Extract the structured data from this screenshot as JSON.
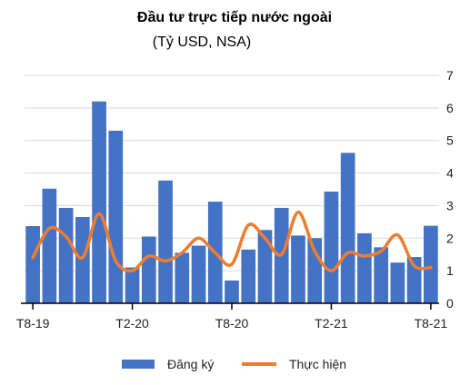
{
  "chart_data": {
    "type": "bar+line",
    "title": "Đầu tư trực tiếp nước ngoài",
    "subtitle": "(Tỷ USD, NSA)",
    "x_tick_labels": [
      "T8-19",
      "T2-20",
      "T8-20",
      "T2-21",
      "T8-21"
    ],
    "x_tick_indices": [
      0,
      6,
      12,
      18,
      24
    ],
    "y_axis_side": "right",
    "ylim": [
      0,
      7
    ],
    "yticks": [
      0,
      1,
      2,
      3,
      4,
      5,
      6,
      7
    ],
    "grid": "horizontal",
    "legend_position": "bottom",
    "series": [
      {
        "name": "Đăng ký",
        "type": "bar",
        "color": "#4472C4",
        "values": [
          2.37,
          3.52,
          2.93,
          2.65,
          6.2,
          5.3,
          1.1,
          2.05,
          3.77,
          1.55,
          1.77,
          3.12,
          0.7,
          1.65,
          2.25,
          2.93,
          2.08,
          2.0,
          3.43,
          4.62,
          2.15,
          1.72,
          1.25,
          1.42,
          2.38
        ]
      },
      {
        "name": "Thực hiện",
        "type": "line",
        "color": "#ED7D31",
        "values": [
          1.4,
          2.3,
          2.05,
          1.4,
          2.75,
          1.3,
          1.0,
          1.45,
          1.3,
          1.55,
          2.0,
          1.55,
          1.2,
          2.4,
          2.0,
          1.5,
          2.8,
          1.6,
          1.0,
          1.55,
          1.45,
          1.6,
          2.1,
          1.15,
          1.1
        ]
      }
    ]
  }
}
